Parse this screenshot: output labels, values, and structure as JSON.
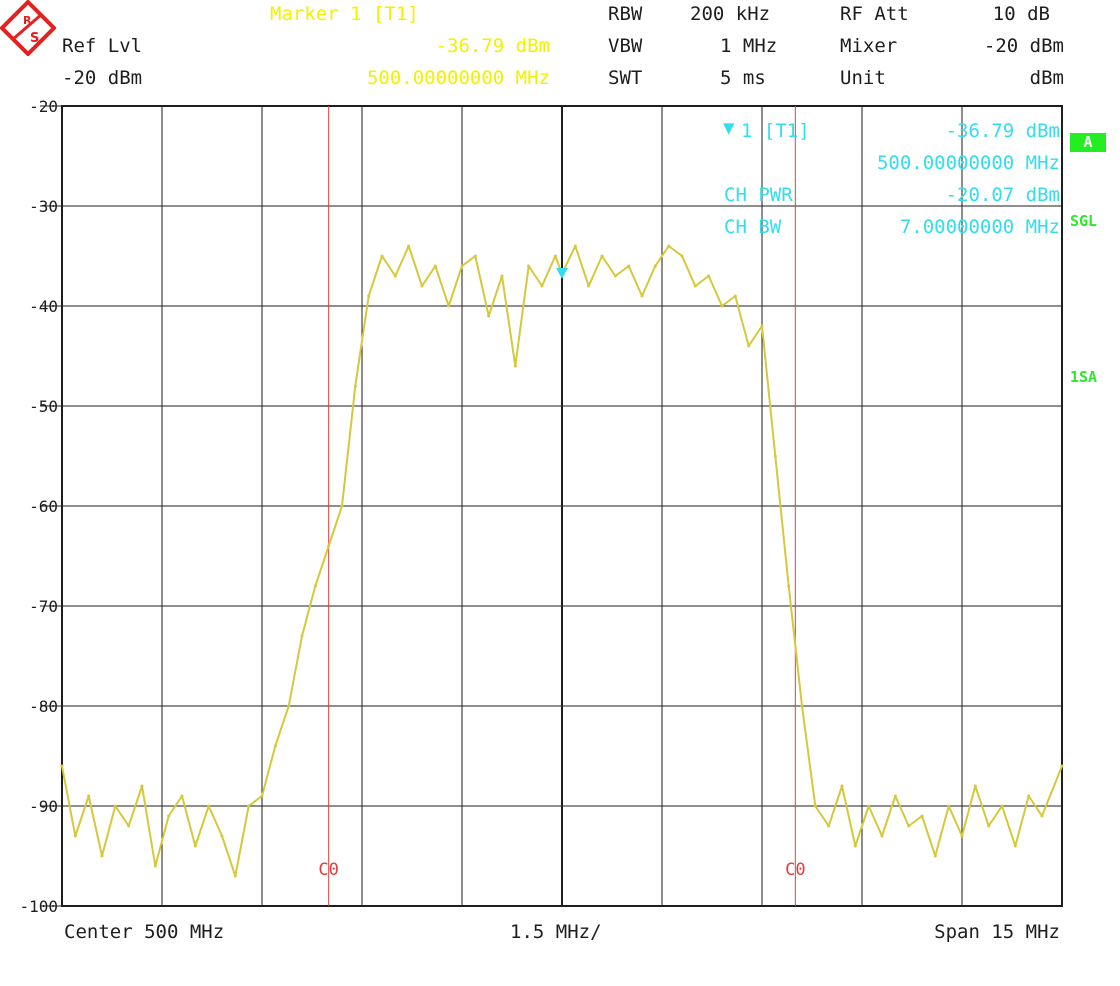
{
  "header": {
    "ref_lvl_label": "Ref Lvl",
    "ref_lvl_value": "-20 dBm",
    "marker_title": "Marker 1 [T1]",
    "marker_level": "-36.79 dBm",
    "marker_freq": "500.00000000 MHz",
    "rbw_label": "RBW",
    "rbw_value": "200 kHz",
    "vbw_label": "VBW",
    "vbw_value": "1 MHz",
    "swt_label": "SWT",
    "swt_value": "5 ms",
    "rfatt_label": "RF Att",
    "rfatt_value": "10 dB",
    "mixer_label": "Mixer",
    "mixer_value": "-20 dBm",
    "unit_label": "Unit",
    "unit_value": "dBm"
  },
  "marker_box": {
    "line1_label": "1 [T1]",
    "line1_value": "-36.79 dBm",
    "line2_value": "500.00000000 MHz",
    "ch_pwr_label": "CH PWR",
    "ch_pwr_value": "-20.07 dBm",
    "ch_bw_label": "CH BW",
    "ch_bw_value": "7.00000000 MHz"
  },
  "side_labels": {
    "a": "A",
    "sgl": "SGL",
    "sa": "1SA"
  },
  "footer": {
    "center": "Center 500 MHz",
    "div": "1.5 MHz/",
    "span": "Span 15 MHz"
  },
  "colors": {
    "trace": "#d6c83c",
    "grid": "#1e1e1e",
    "channel_line": "#e04040",
    "marker": "#33ddee",
    "header_yellow": "#f4f000",
    "side_green": "#2ee82e"
  },
  "logo": {
    "text": "R&S",
    "icon": "rohde-schwarz-logo-icon"
  },
  "chart_data": {
    "type": "line",
    "title": "",
    "xlabel": "",
    "ylabel": "",
    "x_unit": "MHz",
    "y_unit": "dBm",
    "xlim": [
      492.5,
      507.5
    ],
    "ylim": [
      -100,
      -20
    ],
    "grid": true,
    "y_ticks": [
      "-20",
      "-30",
      "-40",
      "-50",
      "-60",
      "-70",
      "-80",
      "-90",
      "-100"
    ],
    "y_tick_values": [
      -20,
      -30,
      -40,
      -50,
      -60,
      -70,
      -80,
      -90,
      -100
    ],
    "channel_lines": [
      {
        "label": "C0",
        "x": 496.5
      },
      {
        "label": "C0",
        "x": 503.5
      }
    ],
    "marker": {
      "name": "1 [T1]",
      "x": 500.0,
      "y": -36.79
    },
    "series": [
      {
        "name": "Trace",
        "x": [
          492.5,
          492.7,
          492.9,
          493.1,
          493.3,
          493.5,
          493.7,
          493.9,
          494.1,
          494.3,
          494.5,
          494.7,
          494.9,
          495.1,
          495.3,
          495.5,
          495.7,
          495.9,
          496.1,
          496.3,
          496.5,
          496.7,
          496.9,
          497.1,
          497.3,
          497.5,
          497.7,
          497.9,
          498.1,
          498.3,
          498.5,
          498.7,
          498.9,
          499.1,
          499.3,
          499.5,
          499.7,
          499.9,
          500.0,
          500.2,
          500.4,
          500.6,
          500.8,
          501.0,
          501.2,
          501.4,
          501.6,
          501.8,
          502.0,
          502.2,
          502.4,
          502.6,
          502.8,
          503.0,
          503.2,
          503.4,
          503.6,
          503.8,
          504.0,
          504.2,
          504.4,
          504.6,
          504.8,
          505.0,
          505.2,
          505.4,
          505.6,
          505.8,
          506.0,
          506.2,
          506.4,
          506.6,
          506.8,
          507.0,
          507.2,
          507.5
        ],
        "y": [
          -86,
          -93,
          -89,
          -95,
          -90,
          -92,
          -88,
          -96,
          -91,
          -89,
          -94,
          -90,
          -93,
          -97,
          -90,
          -89,
          -84,
          -80,
          -73,
          -68,
          -64,
          -60,
          -48,
          -39,
          -35,
          -37,
          -34,
          -38,
          -36,
          -40,
          -36,
          -35,
          -41,
          -37,
          -46,
          -36,
          -38,
          -35,
          -36.79,
          -34,
          -38,
          -35,
          -37,
          -36,
          -39,
          -36,
          -34,
          -35,
          -38,
          -37,
          -40,
          -39,
          -44,
          -42,
          -55,
          -68,
          -80,
          -90,
          -92,
          -88,
          -94,
          -90,
          -93,
          -89,
          -92,
          -91,
          -95,
          -90,
          -93,
          -88,
          -92,
          -90,
          -94,
          -89,
          -91,
          -86
        ]
      }
    ]
  }
}
